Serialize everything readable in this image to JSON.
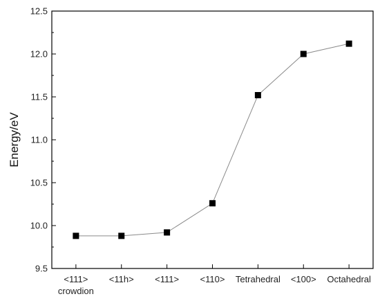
{
  "chart_data": {
    "type": "line",
    "title": "",
    "xlabel": "",
    "ylabel": "Energy/eV",
    "ylim": [
      9.5,
      12.5
    ],
    "yticks": [
      9.5,
      10.0,
      10.5,
      11.0,
      11.5,
      12.0,
      12.5
    ],
    "categories": [
      [
        "<111>",
        "crowdion"
      ],
      [
        "<11h>"
      ],
      [
        "<111>"
      ],
      [
        "<110>"
      ],
      [
        "Tetrahedral"
      ],
      [
        "<100>"
      ],
      [
        "Octahedral"
      ]
    ],
    "series": [
      {
        "values": [
          9.88,
          9.88,
          9.92,
          10.26,
          11.52,
          12.0,
          12.12
        ]
      }
    ],
    "grid": false,
    "line_color": "#8a8a8a",
    "marker_color": "#000000",
    "marker": "square"
  }
}
